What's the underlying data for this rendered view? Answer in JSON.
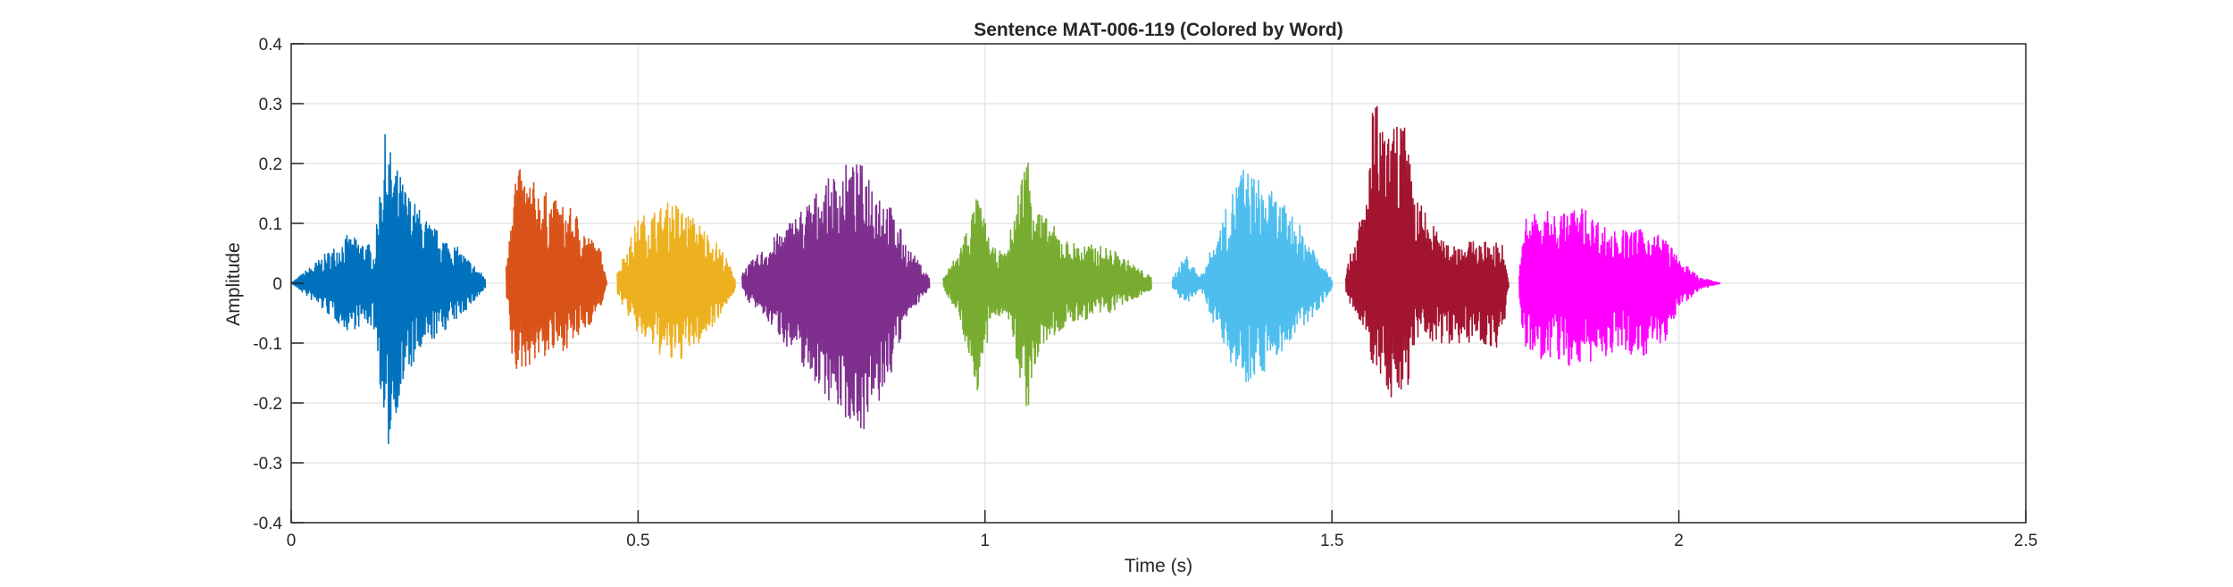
{
  "chart_data": {
    "type": "line",
    "title": "Sentence MAT-006-119 (Colored by Word)",
    "xlabel": "Time (s)",
    "ylabel": "Amplitude",
    "xlim": [
      0,
      2.5
    ],
    "ylim": [
      -0.4,
      0.4
    ],
    "xticks": [
      0,
      0.5,
      1,
      1.5,
      2,
      2.5
    ],
    "xtick_labels": [
      "0",
      "0.5",
      "1",
      "1.5",
      "2",
      "2.5"
    ],
    "yticks": [
      -0.4,
      -0.3,
      -0.2,
      -0.1,
      0,
      0.1,
      0.2,
      0.3,
      0.4
    ],
    "ytick_labels": [
      "-0.4",
      "-0.3",
      "-0.2",
      "-0.1",
      "0",
      "0.1",
      "0.2",
      "0.3",
      "0.4"
    ],
    "grid": true,
    "legend": "none",
    "series": [
      {
        "color": "#0072BD",
        "start": 0.0,
        "end": 0.28,
        "envelope": [
          [
            0.0,
            0.0,
            0.0
          ],
          [
            0.03,
            0.03,
            -0.03
          ],
          [
            0.06,
            0.06,
            -0.06
          ],
          [
            0.08,
            0.08,
            -0.08
          ],
          [
            0.11,
            0.07,
            -0.07
          ],
          [
            0.12,
            0.05,
            -0.08
          ],
          [
            0.13,
            0.2,
            -0.2
          ],
          [
            0.135,
            0.25,
            -0.31
          ],
          [
            0.15,
            0.2,
            -0.22
          ],
          [
            0.17,
            0.15,
            -0.15
          ],
          [
            0.2,
            0.1,
            -0.1
          ],
          [
            0.24,
            0.06,
            -0.06
          ],
          [
            0.28,
            0.01,
            -0.01
          ]
        ]
      },
      {
        "color": "#D95319",
        "start": 0.31,
        "end": 0.455,
        "envelope": [
          [
            0.31,
            0.03,
            -0.03
          ],
          [
            0.32,
            0.2,
            -0.16
          ],
          [
            0.35,
            0.17,
            -0.13
          ],
          [
            0.38,
            0.14,
            -0.12
          ],
          [
            0.41,
            0.12,
            -0.1
          ],
          [
            0.43,
            0.08,
            -0.07
          ],
          [
            0.45,
            0.05,
            -0.03
          ],
          [
            0.455,
            0.0,
            0.0
          ]
        ]
      },
      {
        "color": "#EDB120",
        "start": 0.47,
        "end": 0.64,
        "envelope": [
          [
            0.47,
            0.02,
            -0.02
          ],
          [
            0.5,
            0.11,
            -0.09
          ],
          [
            0.55,
            0.14,
            -0.14
          ],
          [
            0.59,
            0.1,
            -0.1
          ],
          [
            0.62,
            0.06,
            -0.05
          ],
          [
            0.64,
            0.01,
            -0.01
          ]
        ]
      },
      {
        "color": "#7E2F8E",
        "start": 0.65,
        "end": 0.92,
        "envelope": [
          [
            0.65,
            0.02,
            -0.02
          ],
          [
            0.69,
            0.07,
            -0.07
          ],
          [
            0.73,
            0.12,
            -0.13
          ],
          [
            0.77,
            0.17,
            -0.19
          ],
          [
            0.8,
            0.2,
            -0.23
          ],
          [
            0.83,
            0.2,
            -0.25
          ],
          [
            0.86,
            0.14,
            -0.17
          ],
          [
            0.89,
            0.06,
            -0.05
          ],
          [
            0.92,
            0.01,
            -0.01
          ]
        ]
      },
      {
        "color": "#77AC30",
        "start": 0.94,
        "end": 1.24,
        "envelope": [
          [
            0.94,
            0.01,
            -0.01
          ],
          [
            0.96,
            0.05,
            -0.05
          ],
          [
            0.99,
            0.15,
            -0.19
          ],
          [
            1.01,
            0.06,
            -0.06
          ],
          [
            1.03,
            0.05,
            -0.05
          ],
          [
            1.06,
            0.23,
            -0.22
          ],
          [
            1.08,
            0.12,
            -0.11
          ],
          [
            1.12,
            0.07,
            -0.07
          ],
          [
            1.18,
            0.06,
            -0.05
          ],
          [
            1.24,
            0.01,
            -0.01
          ]
        ]
      },
      {
        "color": "#4DBEEE",
        "start": 1.27,
        "end": 1.5,
        "envelope": [
          [
            1.27,
            0.01,
            -0.01
          ],
          [
            1.29,
            0.05,
            -0.04
          ],
          [
            1.31,
            0.01,
            -0.01
          ],
          [
            1.34,
            0.1,
            -0.1
          ],
          [
            1.37,
            0.2,
            -0.17
          ],
          [
            1.4,
            0.17,
            -0.15
          ],
          [
            1.44,
            0.12,
            -0.1
          ],
          [
            1.47,
            0.07,
            -0.06
          ],
          [
            1.5,
            0.01,
            -0.01
          ]
        ]
      },
      {
        "color": "#A2142F",
        "start": 1.52,
        "end": 1.755,
        "envelope": [
          [
            1.52,
            0.02,
            -0.02
          ],
          [
            1.55,
            0.15,
            -0.1
          ],
          [
            1.56,
            0.32,
            -0.15
          ],
          [
            1.58,
            0.24,
            -0.18
          ],
          [
            1.6,
            0.3,
            -0.23
          ],
          [
            1.62,
            0.15,
            -0.1
          ],
          [
            1.66,
            0.07,
            -0.1
          ],
          [
            1.7,
            0.07,
            -0.1
          ],
          [
            1.745,
            0.07,
            -0.11
          ],
          [
            1.755,
            0.0,
            0.0
          ]
        ]
      },
      {
        "color": "#FF00FF",
        "start": 1.77,
        "end": 2.06,
        "envelope": [
          [
            1.77,
            0.02,
            -0.05
          ],
          [
            1.78,
            0.12,
            -0.12
          ],
          [
            1.83,
            0.12,
            -0.14
          ],
          [
            1.86,
            0.13,
            -0.14
          ],
          [
            1.9,
            0.09,
            -0.12
          ],
          [
            1.95,
            0.09,
            -0.12
          ],
          [
            1.98,
            0.08,
            -0.1
          ],
          [
            2.0,
            0.04,
            -0.04
          ],
          [
            2.03,
            0.01,
            -0.01
          ],
          [
            2.06,
            0.0,
            0.0
          ]
        ]
      }
    ]
  }
}
